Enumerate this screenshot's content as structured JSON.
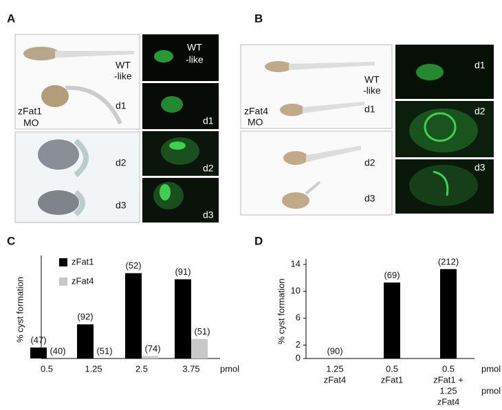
{
  "panel_labels": [
    "A",
    "B",
    "C",
    "D"
  ],
  "panel_a": {
    "bright": {
      "wt": [
        "WT",
        "-like"
      ],
      "mo": [
        "zFat1",
        "MO"
      ],
      "days": [
        "d1",
        "d2",
        "d3"
      ]
    },
    "fluor": {
      "wt": [
        "WT",
        "-like"
      ],
      "days": [
        "d1",
        "d2",
        "d3"
      ]
    }
  },
  "panel_b": {
    "bright": {
      "wt": [
        "WT",
        "-like"
      ],
      "mo": [
        "zFat4",
        "MO"
      ],
      "days": [
        "d1",
        "d2",
        "d3"
      ]
    },
    "fluor": {
      "days": [
        "d1",
        "d2",
        "d3"
      ]
    }
  },
  "chart_data": [
    {
      "type": "bar",
      "y_label": "% cyst formation",
      "x_unit": [
        "pmol"
      ],
      "categories": [
        "0.5",
        "1.25",
        "2.5",
        "3.75"
      ],
      "series": [
        {
          "name": "zFat1",
          "color": "#000000",
          "values": [
            9,
            28,
            70,
            65
          ],
          "sample_sizes": [
            "(47)",
            "(92)",
            "(52)",
            "(91)"
          ]
        },
        {
          "name": "zFat4",
          "color": "#c8c8c8",
          "values": [
            0,
            0,
            2,
            16
          ],
          "sample_sizes": [
            "(40)",
            "(51)",
            "(74)",
            "(51)"
          ]
        }
      ],
      "ylim": [
        0,
        80
      ],
      "legend": "top-left"
    },
    {
      "type": "bar",
      "y_label": "% cyst formation",
      "x_unit": [
        "pmol",
        "pmol"
      ],
      "categories": [
        [
          "1.25",
          "zFat4"
        ],
        [
          "0.5",
          "zFat1"
        ],
        [
          "0.5",
          "zFat1 +",
          "1.25",
          "zFat4"
        ]
      ],
      "series": [
        {
          "name": "zFat",
          "color": "#000000",
          "values": [
            0,
            11.3,
            13.3
          ],
          "sample_sizes": [
            "(90)",
            "(69)",
            "(212)"
          ]
        }
      ],
      "ylim": [
        0,
        14
      ],
      "yticks": [
        0,
        2,
        6,
        10,
        14
      ]
    }
  ]
}
